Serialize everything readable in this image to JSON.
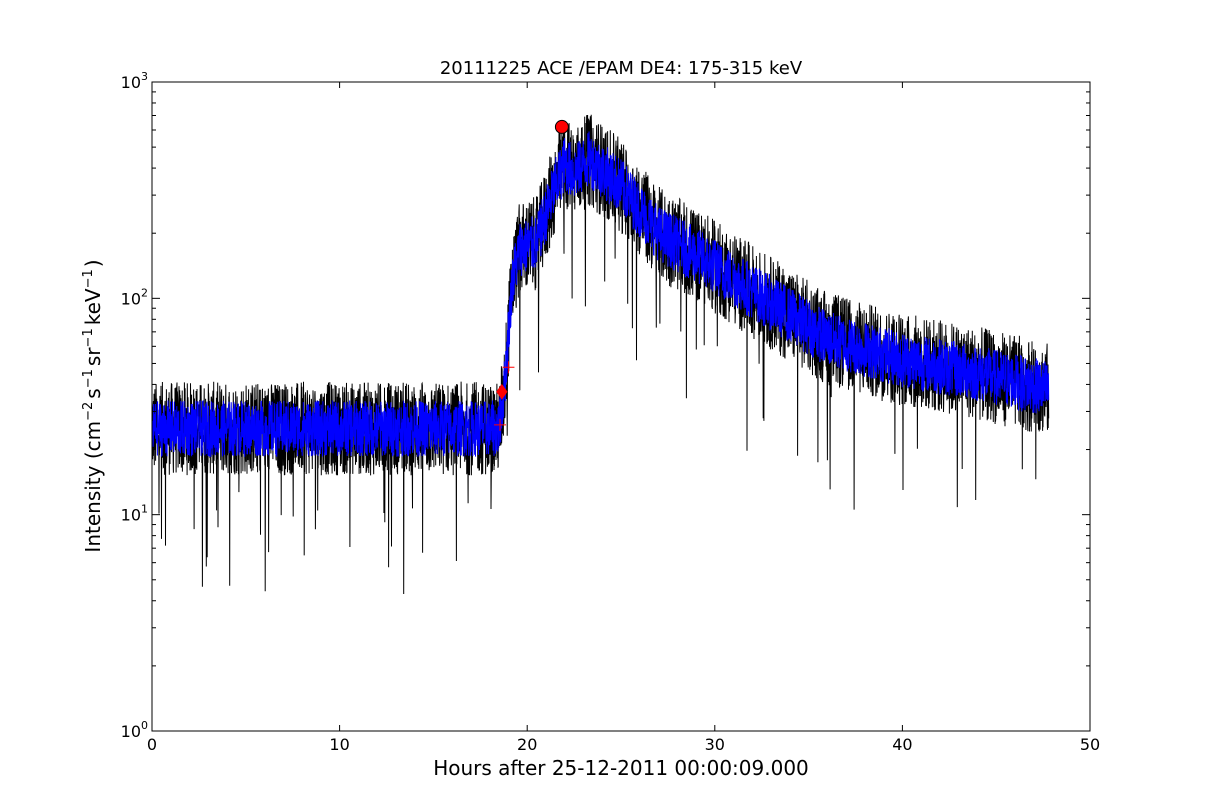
{
  "chart_data": {
    "type": "line",
    "title": "20111225 ACE /EPAM DE4: 175-315 keV",
    "xlabel": "Hours after 25-12-2011 00:00:09.000",
    "ylabel_parts": {
      "prefix": "Intensity (cm",
      "exp1": "−2",
      "s": "s",
      "exp2": "−1",
      "sr": "sr",
      "exp3": "−1",
      "kev": "keV",
      "exp4": "−1",
      "suffix": ")"
    },
    "xlim": [
      0,
      50
    ],
    "ylim": [
      1,
      1000
    ],
    "yscale": "log",
    "grid": false,
    "x_ticks": [
      0,
      10,
      20,
      30,
      40,
      50
    ],
    "y_ticks": [
      {
        "base": "10",
        "exp": "0",
        "value": 1
      },
      {
        "base": "10",
        "exp": "1",
        "value": 10
      },
      {
        "base": "10",
        "exp": "2",
        "value": 100
      },
      {
        "base": "10",
        "exp": "3",
        "value": 1000
      }
    ],
    "series": [
      {
        "role": "raw",
        "color": "#000000",
        "profile": [
          [
            0,
            25
          ],
          [
            18.5,
            25
          ],
          [
            18.8,
            40
          ],
          [
            19.2,
            120
          ],
          [
            19.6,
            170
          ],
          [
            20.5,
            180
          ],
          [
            21.5,
            330
          ],
          [
            22,
            420
          ],
          [
            22.5,
            380
          ],
          [
            23.3,
            440
          ],
          [
            25,
            330
          ],
          [
            27,
            200
          ],
          [
            30,
            140
          ],
          [
            33,
            95
          ],
          [
            36,
            65
          ],
          [
            40,
            52
          ],
          [
            44,
            45
          ],
          [
            47.8,
            38
          ]
        ],
        "spread": 0.5
      },
      {
        "role": "smoothed",
        "color": "#0000ff",
        "profile": [
          [
            0,
            25
          ],
          [
            18.5,
            25
          ],
          [
            18.8,
            40
          ],
          [
            19.2,
            120
          ],
          [
            19.6,
            170
          ],
          [
            20.5,
            180
          ],
          [
            21.5,
            330
          ],
          [
            22,
            420
          ],
          [
            22.5,
            380
          ],
          [
            23.3,
            440
          ],
          [
            25,
            330
          ],
          [
            27,
            200
          ],
          [
            30,
            140
          ],
          [
            33,
            95
          ],
          [
            36,
            65
          ],
          [
            40,
            52
          ],
          [
            44,
            45
          ],
          [
            47.8,
            38
          ]
        ],
        "spread": 0.3
      }
    ],
    "markers": [
      {
        "kind": "circle",
        "x": 21.85,
        "y": 620,
        "color": "#ff0000"
      },
      {
        "kind": "diamond",
        "x": 18.65,
        "y": 37,
        "color": "#ff0000"
      },
      {
        "kind": "plus",
        "x": 19.0,
        "y": 48,
        "color": "#ff0000"
      },
      {
        "kind": "plus",
        "x": 18.55,
        "y": 26,
        "color": "#ff0000"
      }
    ]
  }
}
